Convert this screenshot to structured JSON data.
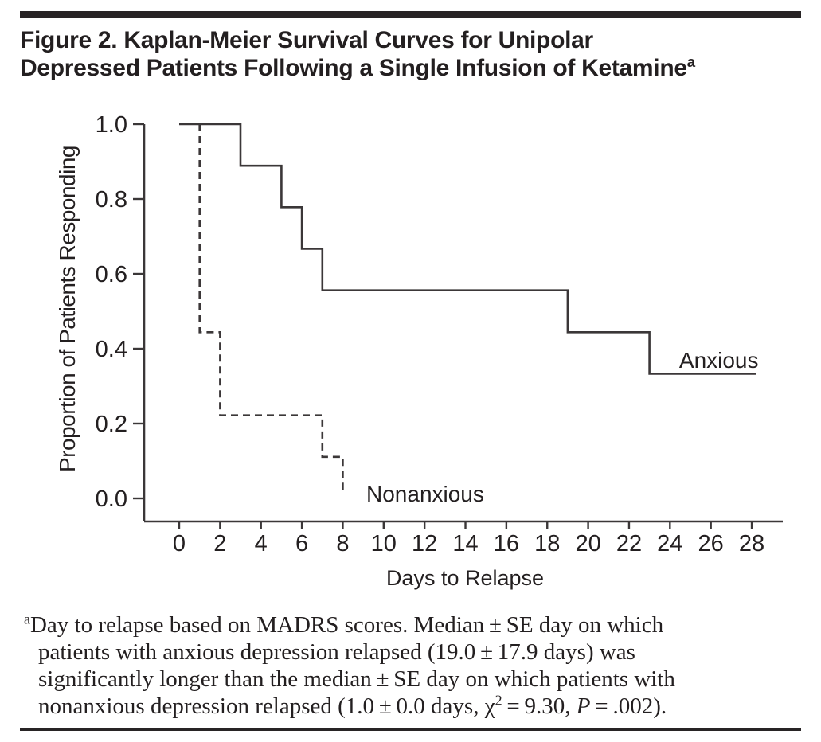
{
  "figure": {
    "title": {
      "line1": "Figure 2. Kaplan-Meier Survival Curves for Unipolar",
      "line2": "Depressed Patients Following a Single Infusion of Ketamine",
      "superscript": "a"
    },
    "footnote": {
      "marker": "a",
      "line1": "Day to relapse based on MADRS scores. Median ± SE day on which",
      "line2": "patients with anxious depression relapsed (19.0 ± 17.9 days) was",
      "line3": "significantly longer than the median ± SE day on which patients with",
      "line4_pre": "nonanxious depression relapsed (1.0 ± 0.0 days, χ",
      "line4_sup": "2",
      "line4_mid": " = 9.30, ",
      "line4_pvar": "P",
      "line4_post": " = .002)."
    },
    "colors": {
      "text": "#231f20",
      "line": "#3b3738",
      "background": "#ffffff"
    }
  },
  "chart_data": {
    "type": "line",
    "subtype": "kaplan_meier_step",
    "title": "",
    "xlabel": "Days to Relapse",
    "ylabel": "Proportion of Patients Responding",
    "xlim": [
      0,
      28
    ],
    "ylim": [
      0.0,
      1.0
    ],
    "x_ticks": [
      0,
      2,
      4,
      6,
      8,
      10,
      12,
      14,
      16,
      18,
      20,
      22,
      24,
      26,
      28
    ],
    "y_ticks": [
      1.0,
      0.8,
      0.6,
      0.4,
      0.2,
      0.0
    ],
    "y_tick_labels": [
      "1.0",
      "0.8",
      "0.6",
      "0.4",
      "0.2",
      "0.0"
    ],
    "grid": false,
    "legend_position": "inline-labels",
    "series": [
      {
        "name": "Anxious",
        "line_style": "solid",
        "points": [
          [
            0,
            1.0
          ],
          [
            3,
            1.0
          ],
          [
            3,
            0.889
          ],
          [
            5,
            0.889
          ],
          [
            5,
            0.778
          ],
          [
            6,
            0.778
          ],
          [
            6,
            0.667
          ],
          [
            7,
            0.667
          ],
          [
            7,
            0.556
          ],
          [
            19,
            0.556
          ],
          [
            19,
            0.444
          ],
          [
            23,
            0.444
          ],
          [
            23,
            0.333
          ],
          [
            28.2,
            0.333
          ]
        ],
        "label_anchor": {
          "day": 24.45,
          "prop": 0.349
        }
      },
      {
        "name": "Nonanxious",
        "line_style": "dashed",
        "points": [
          [
            1,
            1.0
          ],
          [
            1,
            0.444
          ],
          [
            2,
            0.444
          ],
          [
            2,
            0.222
          ],
          [
            7,
            0.222
          ],
          [
            7,
            0.111
          ],
          [
            8,
            0.111
          ],
          [
            8,
            0.01
          ]
        ],
        "label_anchor": {
          "day": 9.15,
          "prop": -0.009
        }
      }
    ]
  }
}
